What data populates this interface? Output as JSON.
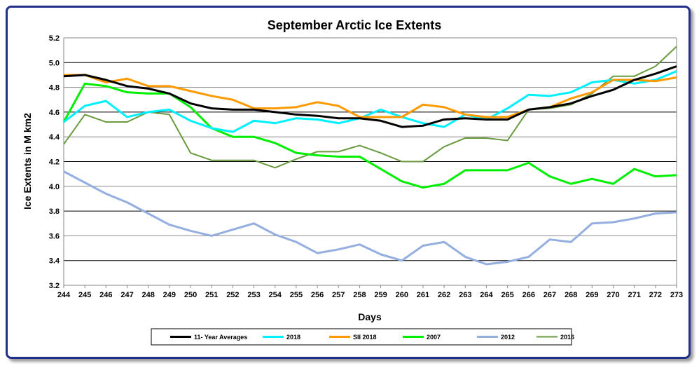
{
  "chart_data": {
    "type": "line",
    "title": "September Arctic Ice Extents",
    "xlabel": "Days",
    "ylabel": "Ice Extents in M km2",
    "ylim": [
      3.2,
      5.2
    ],
    "yticks": [
      "3.2",
      "3.4",
      "3.6",
      "3.8",
      "4.0",
      "4.2",
      "4.4",
      "4.6",
      "4.8",
      "5.0",
      "5.2"
    ],
    "x": [
      244,
      245,
      246,
      247,
      248,
      249,
      250,
      251,
      252,
      253,
      254,
      255,
      256,
      257,
      258,
      259,
      260,
      261,
      262,
      263,
      264,
      265,
      266,
      267,
      268,
      269,
      270,
      271,
      272,
      273
    ],
    "grid": "horizontal",
    "legend": "bottom",
    "series": [
      {
        "name": "11- Year Averages",
        "color": "#000000",
        "values": [
          4.89,
          4.9,
          4.86,
          4.81,
          4.79,
          4.75,
          4.67,
          4.63,
          4.62,
          4.62,
          4.6,
          4.58,
          4.57,
          4.55,
          4.55,
          4.53,
          4.48,
          4.49,
          4.54,
          4.55,
          4.54,
          4.54,
          4.62,
          4.64,
          4.67,
          4.73,
          4.78,
          4.86,
          4.91,
          4.97
        ]
      },
      {
        "name": "2018",
        "color": "#00f0ff",
        "values": [
          4.52,
          4.65,
          4.69,
          4.56,
          4.6,
          4.62,
          4.53,
          4.47,
          4.44,
          4.53,
          4.51,
          4.55,
          4.54,
          4.51,
          4.55,
          4.62,
          4.56,
          4.51,
          4.48,
          4.58,
          4.54,
          4.63,
          4.74,
          4.73,
          4.76,
          4.84,
          4.86,
          4.83,
          4.86,
          4.93
        ]
      },
      {
        "name": "SII 2018",
        "color": "#ff9900",
        "values": [
          4.9,
          4.9,
          4.84,
          4.87,
          4.81,
          4.81,
          4.77,
          4.73,
          4.7,
          4.63,
          4.63,
          4.64,
          4.68,
          4.65,
          4.56,
          4.56,
          4.56,
          4.66,
          4.64,
          4.58,
          4.56,
          4.56,
          4.62,
          4.64,
          4.71,
          4.76,
          4.86,
          4.86,
          4.85,
          4.88
        ]
      },
      {
        "name": "2007",
        "color": "#00ee00",
        "values": [
          4.52,
          4.83,
          4.81,
          4.76,
          4.75,
          4.75,
          4.64,
          4.47,
          4.4,
          4.4,
          4.35,
          4.27,
          4.25,
          4.24,
          4.24,
          4.14,
          4.04,
          3.99,
          4.02,
          4.13,
          4.13,
          4.13,
          4.19,
          4.08,
          4.02,
          4.06,
          4.02,
          4.14,
          4.08,
          4.09
        ]
      },
      {
        "name": "2012",
        "color": "#94aee0",
        "values": [
          4.12,
          4.03,
          3.94,
          3.87,
          3.78,
          3.69,
          3.64,
          3.6,
          3.65,
          3.7,
          3.61,
          3.55,
          3.46,
          3.49,
          3.53,
          3.45,
          3.4,
          3.52,
          3.55,
          3.43,
          3.37,
          3.39,
          3.43,
          3.57,
          3.55,
          3.7,
          3.71,
          3.74,
          3.78,
          3.79
        ]
      },
      {
        "name": "2016",
        "color": "#6a9a40",
        "values": [
          4.34,
          4.58,
          4.52,
          4.52,
          4.6,
          4.58,
          4.27,
          4.21,
          4.21,
          4.21,
          4.15,
          4.22,
          4.28,
          4.28,
          4.33,
          4.27,
          4.2,
          4.2,
          4.32,
          4.39,
          4.39,
          4.37,
          4.62,
          4.63,
          4.66,
          4.75,
          4.89,
          4.89,
          4.97,
          5.13
        ]
      }
    ]
  }
}
